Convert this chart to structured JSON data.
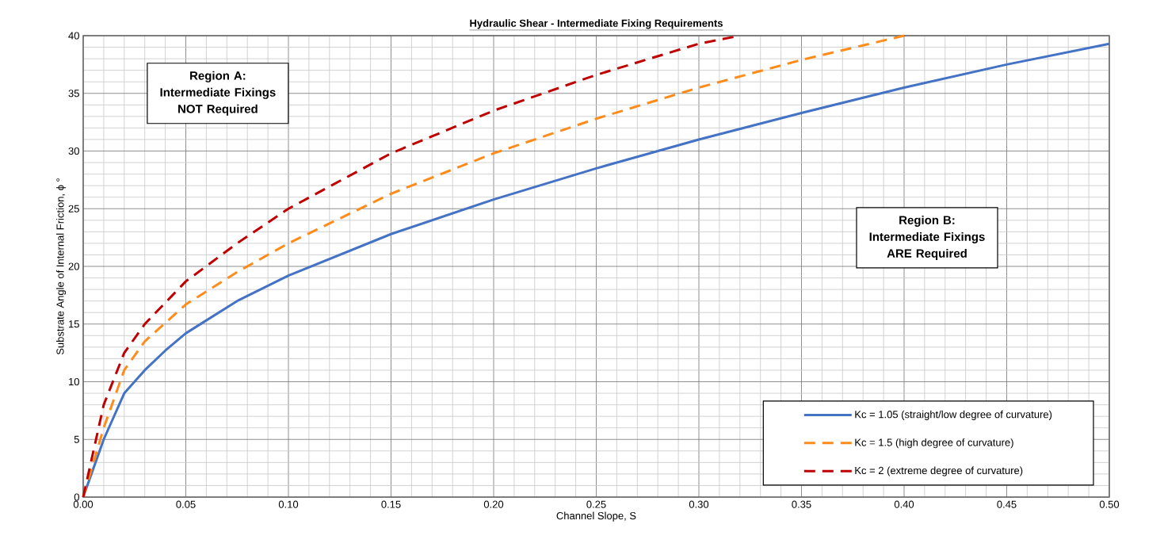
{
  "chart_data": {
    "type": "line",
    "title": "Hydraulic Shear - Intermediate Fixing Requirements",
    "xlabel": "Channel Slope, S",
    "ylabel": "Substrate Angle of Internal Friction, ϕ °",
    "xlim": [
      0,
      0.5
    ],
    "ylim": [
      0,
      40
    ],
    "xticks": [
      {
        "value": 0,
        "label": "0.00"
      },
      {
        "value": 0.05,
        "label": "0.05"
      },
      {
        "value": 0.1,
        "label": "0.10"
      },
      {
        "value": 0.15,
        "label": "0.15"
      },
      {
        "value": 0.2,
        "label": "0.20"
      },
      {
        "value": 0.25,
        "label": "0.25"
      },
      {
        "value": 0.3,
        "label": "0.30"
      },
      {
        "value": 0.35,
        "label": "0.35"
      },
      {
        "value": 0.4,
        "label": "0.40"
      },
      {
        "value": 0.45,
        "label": "0.45"
      },
      {
        "value": 0.5,
        "label": "0.50"
      }
    ],
    "yticks": [
      0,
      5,
      10,
      15,
      20,
      25,
      30,
      35,
      40
    ],
    "grid": true,
    "legend": "bottom right",
    "marker": "none",
    "series": [
      {
        "name": "Kc = 1.05 (straight/low degree of curvature)",
        "color": "#4472c4",
        "line_style": "solid",
        "x": [
          0,
          0.005,
          0.01,
          0.02,
          0.03,
          0.04,
          0.05,
          0.075,
          0.1,
          0.15,
          0.2,
          0.25,
          0.3,
          0.35,
          0.4,
          0.45,
          0.5
        ],
        "values": [
          0,
          2.5,
          5,
          9,
          11,
          12.7,
          14.2,
          17,
          19.2,
          22.8,
          25.8,
          28.5,
          31,
          33.3,
          35.5,
          37.5,
          39.3
        ]
      },
      {
        "name": "Kc = 1.5 (high degree of curvature)",
        "color": "#ff8c1a",
        "line_style": "dashed",
        "x": [
          0,
          0.005,
          0.01,
          0.02,
          0.03,
          0.05,
          0.075,
          0.1,
          0.15,
          0.2,
          0.25,
          0.3,
          0.35,
          0.4
        ],
        "values": [
          0,
          3,
          6,
          11,
          13.5,
          16.7,
          19.5,
          22,
          26.3,
          29.8,
          32.8,
          35.5,
          37.9,
          40
        ]
      },
      {
        "name": "Kc = 2 (extreme degree of curvature)",
        "color": "#c00000",
        "line_style": "dashed",
        "x": [
          0,
          0.005,
          0.01,
          0.02,
          0.03,
          0.05,
          0.075,
          0.1,
          0.15,
          0.2,
          0.25,
          0.3,
          0.32
        ],
        "values": [
          0,
          4,
          8,
          12.5,
          15,
          18.7,
          22,
          25,
          29.8,
          33.5,
          36.6,
          39.3,
          40
        ]
      }
    ],
    "annotations": [
      "Region A: Intermediate Fixings NOT Required",
      "Region B: Intermediate Fixings ARE Required"
    ]
  }
}
